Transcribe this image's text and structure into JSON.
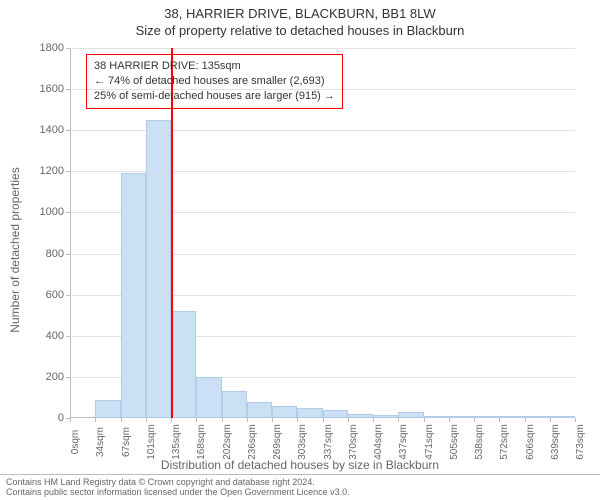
{
  "title": "38, HARRIER DRIVE, BLACKBURN, BB1 8LW",
  "subtitle": "Size of property relative to detached houses in Blackburn",
  "y_axis_label": "Number of detached properties",
  "x_axis_label": "Distribution of detached houses by size in Blackburn",
  "chart": {
    "type": "histogram",
    "background_color": "#ffffff",
    "grid_color": "#e0e0e0",
    "axis_color": "#bbbbbb",
    "label_color": "#666666",
    "bar_fill": "#cce0f5",
    "bar_stroke": "#b0cce8",
    "ylim": [
      0,
      1800
    ],
    "ytick_step": 200,
    "yticks": [
      0,
      200,
      400,
      600,
      800,
      1000,
      1200,
      1400,
      1600,
      1800
    ],
    "x_categories": [
      "0sqm",
      "34sqm",
      "67sqm",
      "101sqm",
      "135sqm",
      "168sqm",
      "202sqm",
      "236sqm",
      "269sqm",
      "303sqm",
      "337sqm",
      "370sqm",
      "404sqm",
      "437sqm",
      "471sqm",
      "505sqm",
      "538sqm",
      "572sqm",
      "606sqm",
      "639sqm",
      "673sqm"
    ],
    "bar_values": [
      0,
      90,
      1190,
      1450,
      520,
      200,
      130,
      80,
      60,
      50,
      40,
      20,
      15,
      30,
      5,
      5,
      5,
      3,
      3,
      3
    ],
    "marker": {
      "bin_index": 4,
      "color": "#ff0000"
    },
    "callout": {
      "border_color": "#ff0000",
      "lines": [
        "38 HARRIER DRIVE: 135sqm",
        "← 74% of detached houses are smaller (2,693)",
        "25% of semi-detached houses are larger (915) →"
      ]
    },
    "label_fontsize": 12,
    "tick_fontsize": 11,
    "title_fontsize": 13
  },
  "footer_line1": "Contains HM Land Registry data © Crown copyright and database right 2024.",
  "footer_line2": "Contains public sector information licensed under the Open Government Licence v3.0."
}
